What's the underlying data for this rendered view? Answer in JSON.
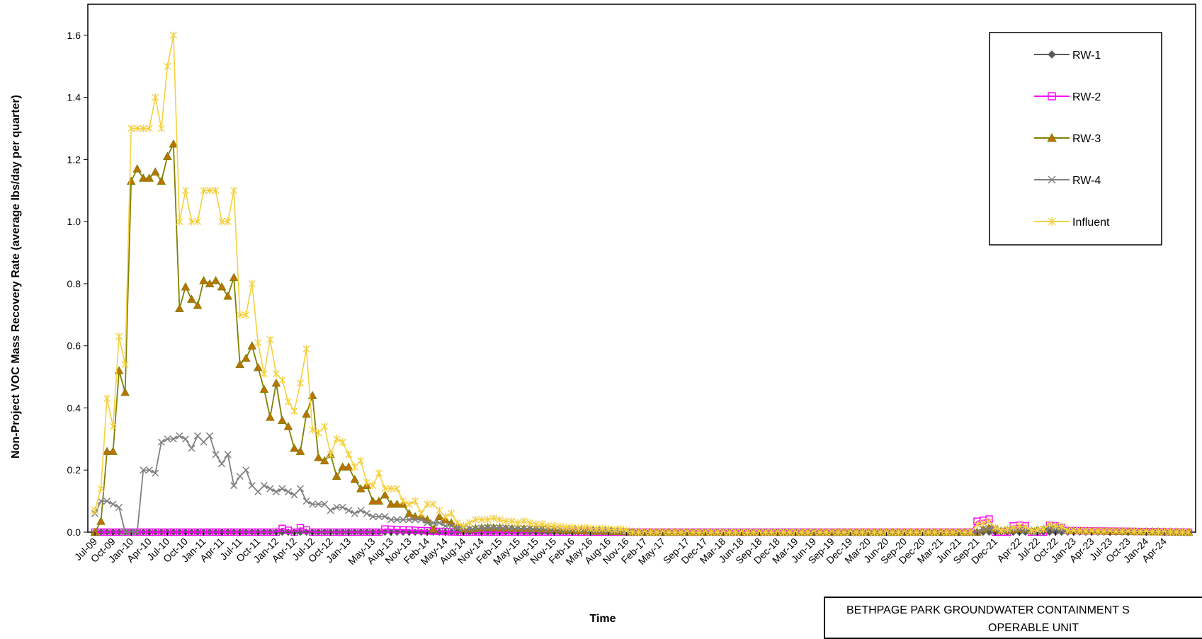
{
  "chart_data": {
    "type": "line",
    "title": "",
    "xlabel": "Time",
    "ylabel": "Non-Project VOC Mass Recovery Rate (average lbs/day per quarter)",
    "ylim": [
      0,
      1.6
    ],
    "ymax_axis": 1.7,
    "yticks": [
      "0.0",
      "0.2",
      "0.4",
      "0.6",
      "0.8",
      "1.0",
      "1.2",
      "1.4",
      "1.6"
    ],
    "x_start": "2009-07",
    "x_months": 181,
    "xticks": [
      "Jul-09",
      "Oct-09",
      "Jan-10",
      "Apr-10",
      "Jul-10",
      "Oct-10",
      "Jan-11",
      "Apr-11",
      "Jul-11",
      "Oct-11",
      "Jan-12",
      "Apr-12",
      "Jul-12",
      "Oct-12",
      "Jan-13",
      "May-13",
      "Aug-13",
      "Nov-13",
      "Feb-14",
      "May-14",
      "Aug-14",
      "Nov-14",
      "Feb-15",
      "May-15",
      "Aug-15",
      "Nov-15",
      "Feb-16",
      "May-16",
      "Aug-16",
      "Nov-16",
      "Feb-17",
      "May-17",
      "Sep-17",
      "Dec-17",
      "Mar-18",
      "Jun-18",
      "Sep-18",
      "Dec-18",
      "Mar-19",
      "Jun-19",
      "Sep-19",
      "Dec-19",
      "Mar-20",
      "Jun-20",
      "Sep-20",
      "Dec-20",
      "Mar-21",
      "Jun-21",
      "Sep-21",
      "Dec-21",
      "Apr-22",
      "Jul-22",
      "Oct-22",
      "Jan-23",
      "Apr-23",
      "Jul-23",
      "Oct-23",
      "Jan-24",
      "Apr-24"
    ],
    "grid": false,
    "legend_position": "top-right",
    "series": [
      {
        "name": "RW-1",
        "color": "#595959",
        "marker": "diamond",
        "values": [
          [
            0,
            0
          ],
          [
            181,
            0
          ]
        ]
      },
      {
        "name": "RW-2",
        "color": "#ff00ff",
        "marker": "square",
        "values": [
          [
            0,
            0
          ],
          [
            30,
            0
          ],
          [
            31,
            0.012
          ],
          [
            33,
            0
          ],
          [
            34,
            0.014
          ],
          [
            36,
            0
          ],
          [
            47,
            0
          ],
          [
            48,
            0.01
          ],
          [
            60,
            0
          ],
          [
            145,
            0
          ],
          [
            146,
            0.035
          ],
          [
            147,
            0.038
          ],
          [
            148,
            0.042
          ],
          [
            149,
            0
          ],
          [
            151,
            0
          ],
          [
            152,
            0.02
          ],
          [
            153,
            0.022
          ],
          [
            154,
            0.02
          ],
          [
            155,
            0
          ],
          [
            157,
            0
          ],
          [
            158,
            0.022
          ],
          [
            159,
            0.02
          ],
          [
            160,
            0.015
          ],
          [
            161,
            0.005
          ],
          [
            181,
            0
          ]
        ]
      },
      {
        "name": "RW-3",
        "color": "#808000",
        "marker": "triangle",
        "values": [
          [
            0,
            0
          ],
          [
            1,
            0.035
          ],
          [
            2,
            0.26
          ],
          [
            3,
            0.26
          ],
          [
            4,
            0.52
          ],
          [
            5,
            0.45
          ],
          [
            6,
            1.13
          ],
          [
            7,
            1.17
          ],
          [
            8,
            1.14
          ],
          [
            9,
            1.14
          ],
          [
            10,
            1.16
          ],
          [
            11,
            1.13
          ],
          [
            12,
            1.21
          ],
          [
            13,
            1.25
          ],
          [
            14,
            0.72
          ],
          [
            15,
            0.79
          ],
          [
            16,
            0.75
          ],
          [
            17,
            0.73
          ],
          [
            18,
            0.81
          ],
          [
            19,
            0.8
          ],
          [
            20,
            0.81
          ],
          [
            21,
            0.79
          ],
          [
            22,
            0.76
          ],
          [
            23,
            0.82
          ],
          [
            24,
            0.54
          ],
          [
            25,
            0.56
          ],
          [
            26,
            0.6
          ],
          [
            28,
            0.46
          ],
          [
            29,
            0.37
          ],
          [
            30,
            0.48
          ],
          [
            31,
            0.36
          ],
          [
            32,
            0.34
          ],
          [
            33,
            0.27
          ],
          [
            34,
            0.26
          ],
          [
            35,
            0.38
          ],
          [
            36,
            0.44
          ],
          [
            37,
            0.24
          ],
          [
            38,
            0.23
          ],
          [
            39,
            0.25
          ],
          [
            40,
            0.18
          ],
          [
            41,
            0.21
          ],
          [
            42,
            0.21
          ],
          [
            43,
            0.17
          ],
          [
            44,
            0.14
          ],
          [
            45,
            0.15
          ],
          [
            46,
            0.1
          ],
          [
            47,
            0.1
          ],
          [
            48,
            0.12
          ],
          [
            49,
            0.09
          ],
          [
            50,
            0.09
          ],
          [
            51,
            0.09
          ],
          [
            52,
            0.06
          ],
          [
            53,
            0.05
          ],
          [
            54,
            0.05
          ],
          [
            55,
            0.04
          ],
          [
            56,
            0.01
          ],
          [
            57,
            0.05
          ],
          [
            58,
            0.04
          ],
          [
            59,
            0.03
          ],
          [
            60,
            0.02
          ],
          [
            61,
            0.01
          ],
          [
            62,
            0.01
          ],
          [
            65,
            0.015
          ],
          [
            70,
            0.012
          ],
          [
            75,
            0.01
          ],
          [
            80,
            0.005
          ],
          [
            85,
            0.003
          ],
          [
            90,
            0
          ],
          [
            146,
            0
          ],
          [
            147,
            0.01
          ],
          [
            148,
            0.015
          ],
          [
            149,
            0.01
          ],
          [
            150,
            0.005
          ],
          [
            152,
            0.008
          ],
          [
            154,
            0.01
          ],
          [
            155,
            0.005
          ],
          [
            157,
            0.01
          ],
          [
            158,
            0.02
          ],
          [
            159,
            0.018
          ],
          [
            160,
            0.015
          ],
          [
            161,
            0.005
          ],
          [
            181,
            0
          ]
        ]
      },
      {
        "name": "RW-4",
        "color": "#808080",
        "marker": "x",
        "values": [
          [
            0,
            0.06
          ],
          [
            1,
            0.1
          ],
          [
            2,
            0.1
          ],
          [
            3,
            0.09
          ],
          [
            4,
            0.08
          ],
          [
            5,
            0
          ],
          [
            6,
            0
          ],
          [
            7,
            0
          ],
          [
            8,
            0.2
          ],
          [
            9,
            0.2
          ],
          [
            10,
            0.19
          ],
          [
            11,
            0.29
          ],
          [
            12,
            0.3
          ],
          [
            13,
            0.3
          ],
          [
            14,
            0.31
          ],
          [
            15,
            0.3
          ],
          [
            16,
            0.27
          ],
          [
            17,
            0.31
          ],
          [
            18,
            0.29
          ],
          [
            19,
            0.31
          ],
          [
            20,
            0.25
          ],
          [
            21,
            0.22
          ],
          [
            22,
            0.25
          ],
          [
            23,
            0.15
          ],
          [
            24,
            0.18
          ],
          [
            25,
            0.2
          ],
          [
            26,
            0.15
          ],
          [
            27,
            0.13
          ],
          [
            28,
            0.15
          ],
          [
            29,
            0.14
          ],
          [
            30,
            0.13
          ],
          [
            31,
            0.14
          ],
          [
            32,
            0.13
          ],
          [
            33,
            0.12
          ],
          [
            34,
            0.14
          ],
          [
            35,
            0.1
          ],
          [
            36,
            0.09
          ],
          [
            37,
            0.09
          ],
          [
            38,
            0.09
          ],
          [
            39,
            0.07
          ],
          [
            40,
            0.08
          ],
          [
            41,
            0.08
          ],
          [
            42,
            0.07
          ],
          [
            43,
            0.06
          ],
          [
            44,
            0.07
          ],
          [
            45,
            0.06
          ],
          [
            46,
            0.05
          ],
          [
            47,
            0.05
          ],
          [
            48,
            0.05
          ],
          [
            49,
            0.04
          ],
          [
            50,
            0.04
          ],
          [
            51,
            0.04
          ],
          [
            52,
            0.04
          ],
          [
            53,
            0.04
          ],
          [
            54,
            0.04
          ],
          [
            55,
            0.03
          ],
          [
            56,
            0.03
          ],
          [
            57,
            0.03
          ],
          [
            58,
            0.02
          ],
          [
            59,
            0.02
          ],
          [
            60,
            0.015
          ],
          [
            62,
            0.01
          ],
          [
            65,
            0.015
          ],
          [
            70,
            0.012
          ],
          [
            75,
            0.01
          ],
          [
            80,
            0.008
          ],
          [
            85,
            0.005
          ],
          [
            90,
            0
          ],
          [
            146,
            0
          ],
          [
            147,
            0.01
          ],
          [
            148,
            0.012
          ],
          [
            149,
            0.01
          ],
          [
            150,
            0.005
          ],
          [
            153,
            0.01
          ],
          [
            156,
            0
          ],
          [
            157,
            0.01
          ],
          [
            158,
            0.015
          ],
          [
            159,
            0.012
          ],
          [
            160,
            0.005
          ],
          [
            181,
            0
          ]
        ]
      },
      {
        "name": "Influent",
        "color": "#f4d03f",
        "marker": "star",
        "values": [
          [
            0,
            0.07
          ],
          [
            1,
            0.14
          ],
          [
            2,
            0.43
          ],
          [
            3,
            0.34
          ],
          [
            4,
            0.63
          ],
          [
            5,
            0.54
          ],
          [
            6,
            1.3
          ],
          [
            7,
            1.3
          ],
          [
            8,
            1.3
          ],
          [
            9,
            1.3
          ],
          [
            10,
            1.4
          ],
          [
            11,
            1.3
          ],
          [
            12,
            1.5
          ],
          [
            13,
            1.6
          ],
          [
            14,
            1.0
          ],
          [
            15,
            1.1
          ],
          [
            16,
            1.0
          ],
          [
            17,
            1.0
          ],
          [
            18,
            1.1
          ],
          [
            19,
            1.1
          ],
          [
            20,
            1.1
          ],
          [
            21,
            1.0
          ],
          [
            22,
            1.0
          ],
          [
            23,
            1.1
          ],
          [
            24,
            0.7
          ],
          [
            25,
            0.7
          ],
          [
            26,
            0.8
          ],
          [
            27,
            0.61
          ],
          [
            28,
            0.51
          ],
          [
            29,
            0.62
          ],
          [
            30,
            0.51
          ],
          [
            31,
            0.49
          ],
          [
            32,
            0.42
          ],
          [
            33,
            0.39
          ],
          [
            34,
            0.48
          ],
          [
            35,
            0.59
          ],
          [
            36,
            0.33
          ],
          [
            37,
            0.32
          ],
          [
            38,
            0.34
          ],
          [
            39,
            0.25
          ],
          [
            40,
            0.3
          ],
          [
            41,
            0.29
          ],
          [
            42,
            0.25
          ],
          [
            43,
            0.21
          ],
          [
            44,
            0.23
          ],
          [
            45,
            0.16
          ],
          [
            46,
            0.15
          ],
          [
            47,
            0.19
          ],
          [
            48,
            0.14
          ],
          [
            49,
            0.14
          ],
          [
            50,
            0.14
          ],
          [
            51,
            0.1
          ],
          [
            52,
            0.09
          ],
          [
            53,
            0.1
          ],
          [
            54,
            0.06
          ],
          [
            55,
            0.09
          ],
          [
            56,
            0.09
          ],
          [
            57,
            0.07
          ],
          [
            58,
            0.05
          ],
          [
            59,
            0.06
          ],
          [
            60,
            0.03
          ],
          [
            61,
            0.02
          ],
          [
            62,
            0.03
          ],
          [
            63,
            0.04
          ],
          [
            64,
            0.04
          ],
          [
            65,
            0.04
          ],
          [
            66,
            0.045
          ],
          [
            67,
            0.04
          ],
          [
            68,
            0.035
          ],
          [
            69,
            0.035
          ],
          [
            70,
            0.03
          ],
          [
            71,
            0.035
          ],
          [
            72,
            0.03
          ],
          [
            73,
            0.025
          ],
          [
            74,
            0.025
          ],
          [
            75,
            0.02
          ],
          [
            76,
            0.02
          ],
          [
            77,
            0.018
          ],
          [
            78,
            0.015
          ],
          [
            79,
            0.015
          ],
          [
            80,
            0.012
          ],
          [
            81,
            0.015
          ],
          [
            82,
            0.012
          ],
          [
            83,
            0.01
          ],
          [
            84,
            0.012
          ],
          [
            85,
            0.01
          ],
          [
            86,
            0.008
          ],
          [
            87,
            0.01
          ],
          [
            88,
            0.005
          ],
          [
            89,
            0
          ],
          [
            145,
            0
          ],
          [
            146,
            0.025
          ],
          [
            147,
            0.03
          ],
          [
            148,
            0.035
          ],
          [
            149,
            0.015
          ],
          [
            150,
            0.005
          ],
          [
            151,
            0.01
          ],
          [
            152,
            0.015
          ],
          [
            153,
            0.02
          ],
          [
            154,
            0.018
          ],
          [
            155,
            0.005
          ],
          [
            157,
            0.01
          ],
          [
            158,
            0.025
          ],
          [
            159,
            0.02
          ],
          [
            160,
            0.018
          ],
          [
            161,
            0.005
          ],
          [
            181,
            0
          ]
        ]
      }
    ]
  },
  "title_box": {
    "line1": "BETHPAGE PARK GROUNDWATER CONTAINMENT S",
    "line2": "OPERABLE UNIT"
  }
}
